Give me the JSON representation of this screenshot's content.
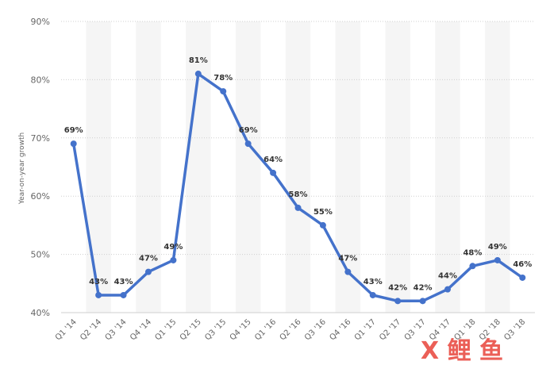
{
  "chart_data": {
    "type": "line",
    "categories": [
      "Q1 '14",
      "Q2 '14",
      "Q3 '14",
      "Q4 '14",
      "Q1 '15",
      "Q2 '15",
      "Q3 '15",
      "Q4 '15",
      "Q1 '16",
      "Q2 '16",
      "Q3 '16",
      "Q4 '16",
      "Q1 '17",
      "Q2 '17",
      "Q3 '17",
      "Q4 '17",
      "Q1 '18",
      "Q2 '18",
      "Q3 '18"
    ],
    "series": [
      {
        "values": [
          69,
          43,
          43,
          47,
          49,
          81,
          78,
          69,
          64,
          58,
          55,
          47,
          43,
          42,
          42,
          44,
          48,
          49,
          46
        ]
      }
    ],
    "data_labels": [
      "69%",
      "43%",
      "43%",
      "47%",
      "49%",
      "81%",
      "78%",
      "69%",
      "64%",
      "58%",
      "55%",
      "47%",
      "43%",
      "42%",
      "42%",
      "44%",
      "48%",
      "49%",
      "46%"
    ],
    "ylabel": "Year-on-year growth",
    "ylim": [
      40,
      90
    ],
    "yticks": [
      "40%",
      "50%",
      "60%",
      "70%",
      "80%",
      "90%"
    ],
    "grid": true,
    "line_color": "#4472cb",
    "band_color": "#f5f5f5"
  },
  "watermark": {
    "text": "X 鲤 鱼"
  }
}
